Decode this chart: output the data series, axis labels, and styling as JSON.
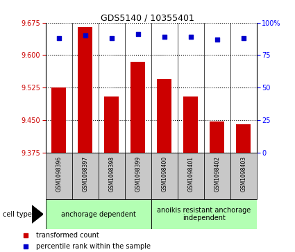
{
  "title": "GDS5140 / 10355401",
  "samples": [
    "GSM1098396",
    "GSM1098397",
    "GSM1098398",
    "GSM1098399",
    "GSM1098400",
    "GSM1098401",
    "GSM1098402",
    "GSM1098403"
  ],
  "bar_values": [
    9.525,
    9.665,
    9.505,
    9.585,
    9.545,
    9.505,
    9.447,
    9.44
  ],
  "percentile_values": [
    88,
    90,
    88,
    91,
    89,
    89,
    87,
    88
  ],
  "ylim_left": [
    9.375,
    9.675
  ],
  "ylim_right": [
    0,
    100
  ],
  "yticks_left": [
    9.375,
    9.45,
    9.525,
    9.6,
    9.675
  ],
  "yticks_right": [
    0,
    25,
    50,
    75,
    100
  ],
  "ytick_labels_right": [
    "0",
    "25",
    "50",
    "75",
    "100%"
  ],
  "bar_color": "#cc0000",
  "dot_color": "#0000cc",
  "bar_width": 0.55,
  "group1_label": "anchorage dependent",
  "group2_label": "anoikis resistant anchorage\nindependent",
  "group1_indices": [
    0,
    1,
    2,
    3
  ],
  "group2_indices": [
    4,
    5,
    6,
    7
  ],
  "cell_type_label": "cell type",
  "legend_bar_label": "transformed count",
  "legend_dot_label": "percentile rank within the sample",
  "group_bg_color": "#b3ffb3",
  "sample_box_color": "#c8c8c8",
  "background_color": "#ffffff"
}
